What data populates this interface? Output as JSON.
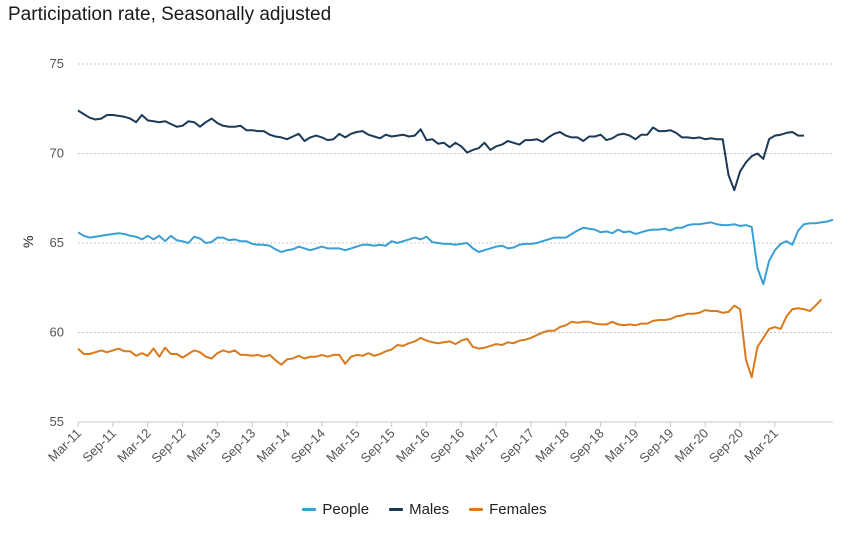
{
  "chart_data": {
    "type": "line",
    "title": "Participation rate, Seasonally adjusted",
    "ylabel": "%",
    "xlabel": "",
    "ylim": [
      55,
      75
    ],
    "yticks": [
      55,
      60,
      65,
      70,
      75
    ],
    "x_start": "Mar-11",
    "x_end": "Mar-21",
    "xtick_labels": [
      "Mar-11",
      "Sep-11",
      "Mar-12",
      "Sep-12",
      "Mar-13",
      "Sep-13",
      "Mar-14",
      "Sep-14",
      "Mar-15",
      "Sep-15",
      "Mar-16",
      "Sep-16",
      "Mar-17",
      "Sep-17",
      "Mar-18",
      "Sep-18",
      "Mar-19",
      "Sep-19",
      "Mar-20",
      "Sep-20",
      "Mar-21"
    ],
    "legend_position": "bottom",
    "grid": true,
    "series": [
      {
        "name": "People",
        "color": "#3a9fd4",
        "values": [
          65.6,
          65.4,
          65.3,
          65.35,
          65.4,
          65.45,
          65.5,
          65.55,
          65.5,
          65.4,
          65.35,
          65.2,
          65.4,
          65.2,
          65.4,
          65.1,
          65.4,
          65.15,
          65.1,
          65.0,
          65.35,
          65.25,
          65.0,
          65.05,
          65.3,
          65.3,
          65.15,
          65.2,
          65.1,
          65.1,
          64.95,
          64.9,
          64.9,
          64.85,
          64.65,
          64.5,
          64.6,
          64.65,
          64.8,
          64.7,
          64.6,
          64.7,
          64.8,
          64.7,
          64.7,
          64.7,
          64.6,
          64.7,
          64.8,
          64.9,
          64.9,
          64.85,
          64.9,
          64.85,
          65.1,
          65.0,
          65.1,
          65.2,
          65.3,
          65.2,
          65.35,
          65.05,
          65.0,
          64.95,
          64.95,
          64.9,
          64.95,
          65.0,
          64.7,
          64.5,
          64.6,
          64.7,
          64.8,
          64.85,
          64.7,
          64.75,
          64.9,
          64.95,
          64.95,
          65.0,
          65.1,
          65.2,
          65.3,
          65.3,
          65.3,
          65.5,
          65.7,
          65.85,
          65.8,
          65.75,
          65.6,
          65.65,
          65.55,
          65.75,
          65.6,
          65.65,
          65.5,
          65.6,
          65.7,
          65.75,
          65.75,
          65.8,
          65.7,
          65.85,
          65.85,
          66.0,
          66.05,
          66.05,
          66.1,
          66.15,
          66.05,
          66.0,
          66.0,
          66.05,
          65.95,
          66.0,
          65.9,
          63.6,
          62.7,
          64.0,
          64.6,
          64.95,
          65.1,
          64.9,
          65.7,
          66.05,
          66.1,
          66.1,
          66.15,
          66.2,
          66.3
        ]
      },
      {
        "name": "Males",
        "color": "#1b3a57",
        "values": [
          72.4,
          72.2,
          72.0,
          71.9,
          71.95,
          72.15,
          72.15,
          72.1,
          72.05,
          71.95,
          71.75,
          72.15,
          71.85,
          71.8,
          71.75,
          71.8,
          71.65,
          71.5,
          71.55,
          71.8,
          71.75,
          71.5,
          71.75,
          71.95,
          71.7,
          71.55,
          71.5,
          71.5,
          71.55,
          71.3,
          71.3,
          71.25,
          71.25,
          71.05,
          70.95,
          70.9,
          70.8,
          70.95,
          71.1,
          70.7,
          70.9,
          71.0,
          70.9,
          70.75,
          70.8,
          71.1,
          70.9,
          71.1,
          71.2,
          71.25,
          71.05,
          70.95,
          70.85,
          71.05,
          70.95,
          71.0,
          71.05,
          70.95,
          71.0,
          71.35,
          70.75,
          70.8,
          70.55,
          70.6,
          70.35,
          70.6,
          70.4,
          70.05,
          70.2,
          70.3,
          70.6,
          70.2,
          70.4,
          70.5,
          70.7,
          70.6,
          70.5,
          70.75,
          70.75,
          70.8,
          70.65,
          70.9,
          71.1,
          71.2,
          71.0,
          70.9,
          70.9,
          70.7,
          70.95,
          70.95,
          71.05,
          70.75,
          70.85,
          71.05,
          71.1,
          71.0,
          70.8,
          71.05,
          71.05,
          71.45,
          71.25,
          71.25,
          71.3,
          71.15,
          70.9,
          70.9,
          70.85,
          70.9,
          70.8,
          70.85,
          70.8,
          70.8,
          68.8,
          67.95,
          69.0,
          69.5,
          69.85,
          70.0,
          69.7,
          70.8,
          71.0,
          71.05,
          71.15,
          71.2,
          71.0,
          71.0
        ]
      },
      {
        "name": "Females",
        "color": "#d97a1b",
        "values": [
          59.1,
          58.8,
          58.8,
          58.9,
          59.0,
          58.9,
          59.0,
          59.1,
          58.95,
          58.95,
          58.7,
          58.85,
          58.7,
          59.1,
          58.65,
          59.15,
          58.8,
          58.8,
          58.6,
          58.8,
          59.0,
          58.9,
          58.65,
          58.55,
          58.85,
          59.0,
          58.9,
          59.0,
          58.75,
          58.75,
          58.7,
          58.75,
          58.65,
          58.75,
          58.45,
          58.2,
          58.5,
          58.55,
          58.7,
          58.55,
          58.65,
          58.65,
          58.75,
          58.65,
          58.75,
          58.75,
          58.25,
          58.65,
          58.75,
          58.7,
          58.85,
          58.7,
          58.8,
          58.95,
          59.05,
          59.3,
          59.25,
          59.4,
          59.5,
          59.7,
          59.55,
          59.45,
          59.4,
          59.45,
          59.5,
          59.35,
          59.55,
          59.65,
          59.2,
          59.1,
          59.15,
          59.25,
          59.35,
          59.3,
          59.45,
          59.4,
          59.55,
          59.6,
          59.7,
          59.85,
          60.0,
          60.1,
          60.1,
          60.3,
          60.4,
          60.6,
          60.55,
          60.6,
          60.6,
          60.5,
          60.45,
          60.45,
          60.6,
          60.45,
          60.4,
          60.45,
          60.4,
          60.5,
          60.5,
          60.65,
          60.7,
          60.7,
          60.75,
          60.9,
          60.95,
          61.05,
          61.05,
          61.1,
          61.25,
          61.2,
          61.2,
          61.1,
          61.15,
          61.5,
          61.3,
          58.5,
          57.5,
          59.2,
          59.7,
          60.2,
          60.3,
          60.2,
          60.9,
          61.3,
          61.35,
          61.3,
          61.2,
          61.5,
          61.85
        ]
      }
    ]
  }
}
